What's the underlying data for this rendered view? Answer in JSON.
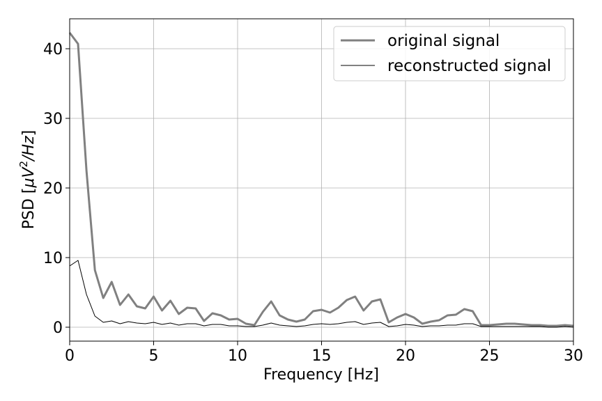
{
  "chart_data": {
    "type": "line",
    "xlabel": "Frequency [Hz]",
    "ylabel_prefix": "PSD [",
    "ylabel_mu": "μ",
    "ylabel_v": "V",
    "ylabel_sup": "2",
    "ylabel_rest": "/Hz",
    "ylabel_suffix": "]",
    "xlim": [
      0,
      30
    ],
    "ylim": [
      -2,
      44.3
    ],
    "xticks": [
      0,
      5,
      10,
      15,
      20,
      25,
      30
    ],
    "yticks": [
      0,
      10,
      20,
      30,
      40
    ],
    "grid": true,
    "legend_position": "top-right",
    "x": [
      0,
      0.5,
      1,
      1.5,
      2,
      2.5,
      3,
      3.5,
      4,
      4.5,
      5,
      5.5,
      6,
      6.5,
      7,
      7.5,
      8,
      8.5,
      9,
      9.5,
      10,
      10.5,
      11,
      11.5,
      12,
      12.5,
      13,
      13.5,
      14,
      14.5,
      15,
      15.5,
      16,
      16.5,
      17,
      17.5,
      18,
      18.5,
      19,
      19.5,
      20,
      20.5,
      21,
      21.5,
      22,
      22.5,
      23,
      23.5,
      24,
      24.5,
      25,
      25.5,
      26,
      26.5,
      27,
      27.5,
      28,
      28.5,
      29,
      29.5,
      30
    ],
    "series": [
      {
        "name": "original signal",
        "color": "#808080",
        "values": [
          42.3,
          40.7,
          22.5,
          8.2,
          4.2,
          6.5,
          3.2,
          4.7,
          3.0,
          2.7,
          4.4,
          2.4,
          3.8,
          1.9,
          2.8,
          2.7,
          0.9,
          2.0,
          1.7,
          1.1,
          1.2,
          0.5,
          0.3,
          2.2,
          3.7,
          1.7,
          1.1,
          0.8,
          1.1,
          2.3,
          2.5,
          2.1,
          2.8,
          3.9,
          4.4,
          2.4,
          3.7,
          4.0,
          0.7,
          1.4,
          1.9,
          1.4,
          0.5,
          0.8,
          1.0,
          1.7,
          1.8,
          2.6,
          2.3,
          0.3,
          0.3,
          0.4,
          0.5,
          0.5,
          0.4,
          0.3,
          0.3,
          0.2,
          0.2,
          0.3,
          0.2
        ]
      },
      {
        "name": "reconstructed signal",
        "color": "#000000",
        "values": [
          8.8,
          9.6,
          4.7,
          1.6,
          0.7,
          0.9,
          0.5,
          0.8,
          0.6,
          0.5,
          0.7,
          0.4,
          0.6,
          0.3,
          0.5,
          0.5,
          0.2,
          0.4,
          0.4,
          0.2,
          0.2,
          0.1,
          0.1,
          0.3,
          0.6,
          0.3,
          0.2,
          0.1,
          0.2,
          0.4,
          0.5,
          0.4,
          0.5,
          0.7,
          0.8,
          0.4,
          0.6,
          0.7,
          0.1,
          0.2,
          0.4,
          0.3,
          0.1,
          0.2,
          0.2,
          0.3,
          0.3,
          0.5,
          0.5,
          0.1,
          0.1,
          0.1,
          0.1,
          0.1,
          0.1,
          0.1,
          0.1,
          0.0,
          0.0,
          0.1,
          0.0
        ]
      }
    ]
  }
}
